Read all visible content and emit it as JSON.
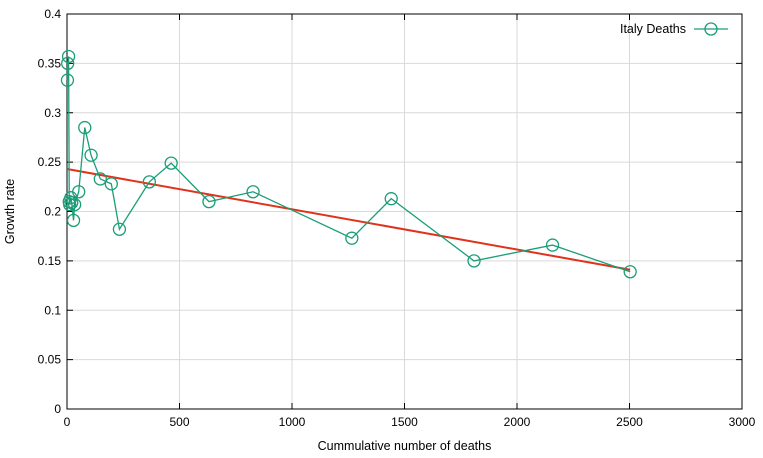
{
  "chart_data": {
    "type": "scatter",
    "xlabel": "Cummulative number of deaths",
    "ylabel": "Growth rate",
    "xlim": [
      0,
      3000
    ],
    "ylim": [
      0,
      0.4
    ],
    "x_ticks": [
      0,
      500,
      1000,
      1500,
      2000,
      2500,
      3000
    ],
    "y_ticks": [
      0,
      0.05,
      0.1,
      0.15,
      0.2,
      0.25,
      0.3,
      0.35,
      0.4
    ],
    "x_tick_labels": [
      "0",
      "500",
      "1000",
      "1500",
      "2000",
      "2500",
      "3000"
    ],
    "y_tick_labels": [
      "0",
      "0.05",
      "0.1",
      "0.15",
      "0.2",
      "0.25",
      "0.3",
      "0.35",
      "0.4"
    ],
    "grid": true,
    "legend_position": "top-right",
    "series": [
      {
        "name": "Italy Deaths",
        "color": "#1a9e77",
        "marker": "open-circle",
        "x": [
          2,
          3,
          7,
          10,
          12,
          17,
          21,
          29,
          34,
          52,
          79,
          107,
          148,
          197,
          233,
          366,
          463,
          631,
          827,
          1266,
          1441,
          1809,
          2158,
          2503
        ],
        "y": [
          0.333,
          0.35,
          0.357,
          0.21,
          0.207,
          0.214,
          0.209,
          0.191,
          0.207,
          0.22,
          0.285,
          0.257,
          0.233,
          0.228,
          0.182,
          0.23,
          0.249,
          0.21,
          0.22,
          0.173,
          0.213,
          0.15,
          0.166,
          0.139
        ]
      }
    ],
    "fit_line": {
      "color": "#e0321c",
      "x": [
        0,
        2503
      ],
      "y": [
        0.243,
        0.141
      ]
    }
  }
}
